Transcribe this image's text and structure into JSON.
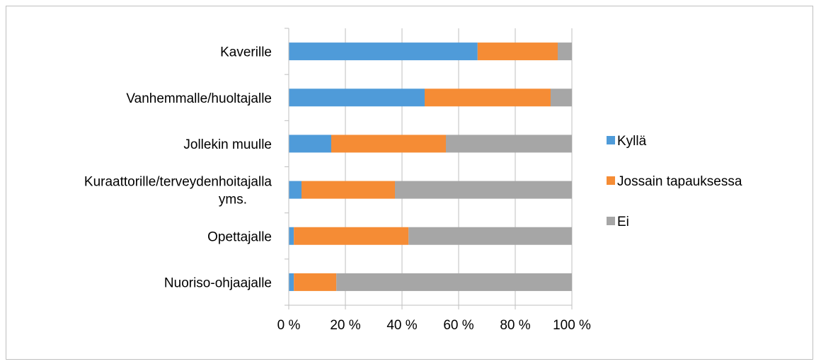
{
  "chart_data": {
    "type": "bar",
    "orientation": "horizontal",
    "stacked": "percent",
    "categories": [
      "Kaverille",
      "Vanhemmalle/huoltajalle",
      "Jollekin muulle",
      "Kuraattorille/terveydenhoitajalla yms.",
      "Opettajalle",
      "Nuoriso-ohjaajalle"
    ],
    "category_lines": [
      [
        "Kaverille"
      ],
      [
        "Vanhemmalle/huoltajalle"
      ],
      [
        "Jollekin muulle"
      ],
      [
        "Kuraattorille/terveydenhoitajalla",
        "yms."
      ],
      [
        "Opettajalle"
      ],
      [
        "Nuoriso-ohjaajalle"
      ]
    ],
    "series": [
      {
        "name": "Kyllä",
        "color": "#4F9BD9",
        "values": [
          66.7,
          48.0,
          15.0,
          4.5,
          1.8,
          1.8
        ]
      },
      {
        "name": "Jossain tapauksessa",
        "color": "#F58C35",
        "values": [
          28.3,
          44.5,
          40.5,
          33.0,
          40.5,
          15.0
        ]
      },
      {
        "name": "Ei",
        "color": "#A6A6A6",
        "values": [
          5.0,
          7.5,
          44.5,
          62.5,
          57.7,
          83.2
        ]
      }
    ],
    "xlim": [
      0,
      100
    ],
    "x_ticks": [
      "0 %",
      "20 %",
      "40 %",
      "60 %",
      "80 %",
      "100 %"
    ],
    "grid": true,
    "legend_position": "right"
  }
}
